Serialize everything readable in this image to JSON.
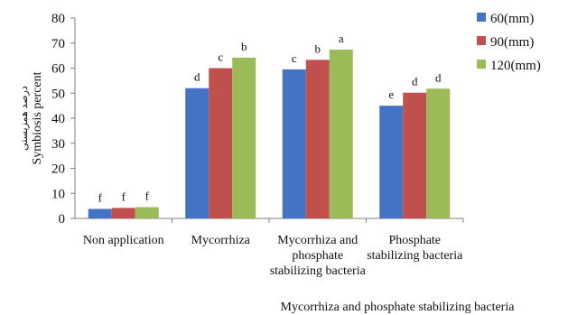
{
  "chart_data": {
    "type": "bar",
    "categories": [
      [
        "Non application"
      ],
      [
        "Mycorrhiza"
      ],
      [
        "Mycorrhiza and",
        "phosphate",
        "stabilizing bacteria"
      ],
      [
        "Phosphate",
        "stabilizing bacteria"
      ]
    ],
    "series": [
      {
        "name": "60(mm)",
        "color": "#4472c4",
        "values": [
          3.8,
          52,
          59.5,
          45
        ],
        "labels": [
          "f",
          "d",
          "c",
          "e"
        ]
      },
      {
        "name": "90(mm)",
        "color": "#c0504d",
        "values": [
          4.2,
          60,
          63.3,
          50.2
        ],
        "labels": [
          "f",
          "c",
          "b",
          "d"
        ]
      },
      {
        "name": "120(mm)",
        "color": "#9bbb59",
        "values": [
          4.5,
          64.2,
          67.4,
          51.8
        ],
        "labels": [
          "f",
          "b",
          "a",
          "d"
        ]
      }
    ],
    "ylabel": "Symbiosis percent",
    "ylabel_fa": "درصد همزیستی",
    "xlabel": "Mycorrhiza and phosphate stabilizing bacteria",
    "ylim": [
      0,
      80
    ],
    "yticks": [
      0,
      10,
      20,
      30,
      40,
      50,
      60,
      70,
      80
    ],
    "grid": false,
    "legend_position": "right"
  }
}
